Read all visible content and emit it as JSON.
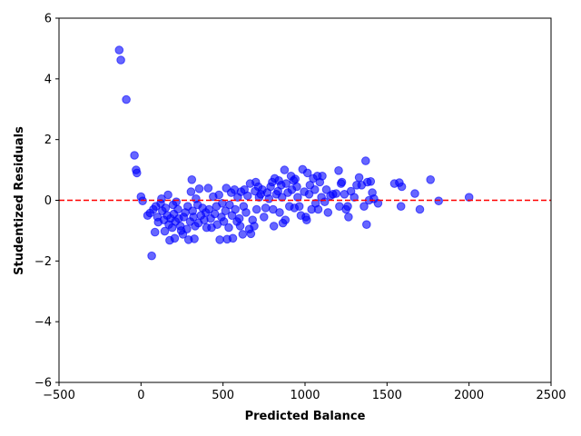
{
  "chart_data": {
    "type": "scatter",
    "xlabel": "Predicted Balance",
    "ylabel": "Studentized Residuals",
    "xlim": [
      -500,
      2500
    ],
    "ylim": [
      -6,
      6
    ],
    "xticks": [
      -500,
      0,
      500,
      1000,
      1500,
      2000,
      2500
    ],
    "yticks": [
      -6,
      -4,
      -2,
      0,
      2,
      4,
      6
    ],
    "grid": false,
    "point_color": "#0000ff",
    "reference_line": {
      "y": 0,
      "color": "#ff0000",
      "style": "dashed"
    },
    "points": [
      [
        -133,
        4.95
      ],
      [
        -123,
        4.62
      ],
      [
        -90,
        3.32
      ],
      [
        -40,
        1.48
      ],
      [
        -30,
        1.0
      ],
      [
        -25,
        0.9
      ],
      [
        0,
        0.12
      ],
      [
        10,
        -0.02
      ],
      [
        40,
        -0.5
      ],
      [
        55,
        -0.42
      ],
      [
        65,
        -1.83
      ],
      [
        75,
        -0.3
      ],
      [
        85,
        -1.05
      ],
      [
        90,
        -0.2
      ],
      [
        100,
        -0.55
      ],
      [
        105,
        -0.72
      ],
      [
        120,
        -0.1
      ],
      [
        125,
        0.05
      ],
      [
        130,
        -0.35
      ],
      [
        140,
        -0.65
      ],
      [
        145,
        -1.02
      ],
      [
        150,
        -0.25
      ],
      [
        160,
        -0.5
      ],
      [
        165,
        0.18
      ],
      [
        170,
        -0.8
      ],
      [
        175,
        -1.32
      ],
      [
        180,
        -0.6
      ],
      [
        190,
        -0.9
      ],
      [
        195,
        -0.15
      ],
      [
        200,
        -0.45
      ],
      [
        205,
        -1.25
      ],
      [
        210,
        -0.7
      ],
      [
        215,
        -0.05
      ],
      [
        225,
        -0.3
      ],
      [
        230,
        -0.6
      ],
      [
        240,
        -0.85
      ],
      [
        245,
        -1.0
      ],
      [
        255,
        -1.12
      ],
      [
        260,
        -0.55
      ],
      [
        270,
        -0.4
      ],
      [
        280,
        -0.95
      ],
      [
        285,
        -0.2
      ],
      [
        290,
        -1.3
      ],
      [
        300,
        -0.7
      ],
      [
        305,
        0.28
      ],
      [
        310,
        0.68
      ],
      [
        315,
        -0.35
      ],
      [
        320,
        -0.55
      ],
      [
        325,
        -1.27
      ],
      [
        330,
        -0.85
      ],
      [
        335,
        0.05
      ],
      [
        345,
        -0.15
      ],
      [
        350,
        -0.75
      ],
      [
        355,
        0.38
      ],
      [
        365,
        -0.5
      ],
      [
        375,
        -0.25
      ],
      [
        385,
        -0.65
      ],
      [
        395,
        -0.4
      ],
      [
        400,
        -0.9
      ],
      [
        410,
        0.4
      ],
      [
        415,
        -0.3
      ],
      [
        425,
        -0.6
      ],
      [
        430,
        -0.9
      ],
      [
        440,
        0.12
      ],
      [
        450,
        -0.45
      ],
      [
        460,
        -0.2
      ],
      [
        465,
        -0.8
      ],
      [
        475,
        0.18
      ],
      [
        480,
        -1.3
      ],
      [
        490,
        -0.55
      ],
      [
        495,
        -0.1
      ],
      [
        505,
        -0.7
      ],
      [
        515,
        -0.35
      ],
      [
        520,
        0.4
      ],
      [
        525,
        -1.28
      ],
      [
        535,
        -0.9
      ],
      [
        540,
        -0.15
      ],
      [
        550,
        0.25
      ],
      [
        555,
        -0.5
      ],
      [
        560,
        -1.25
      ],
      [
        570,
        0.35
      ],
      [
        575,
        -0.3
      ],
      [
        585,
        -0.7
      ],
      [
        590,
        0.1
      ],
      [
        600,
        -0.6
      ],
      [
        605,
        -0.85
      ],
      [
        610,
        0.28
      ],
      [
        620,
        -1.12
      ],
      [
        625,
        -0.2
      ],
      [
        630,
        0.35
      ],
      [
        640,
        -0.4
      ],
      [
        650,
        0.15
      ],
      [
        660,
        -0.95
      ],
      [
        665,
        0.55
      ],
      [
        670,
        -1.1
      ],
      [
        680,
        -0.65
      ],
      [
        690,
        -0.85
      ],
      [
        695,
        0.3
      ],
      [
        700,
        0.6
      ],
      [
        705,
        -0.3
      ],
      [
        715,
        0.45
      ],
      [
        720,
        0.1
      ],
      [
        730,
        0.2
      ],
      [
        740,
        0.35
      ],
      [
        750,
        -0.55
      ],
      [
        760,
        -0.25
      ],
      [
        770,
        0.25
      ],
      [
        780,
        0.05
      ],
      [
        790,
        0.45
      ],
      [
        800,
        0.6
      ],
      [
        805,
        -0.3
      ],
      [
        810,
        -0.85
      ],
      [
        815,
        0.72
      ],
      [
        825,
        0.2
      ],
      [
        835,
        0.3
      ],
      [
        840,
        0.65
      ],
      [
        845,
        -0.4
      ],
      [
        855,
        0.5
      ],
      [
        860,
        0.1
      ],
      [
        865,
        -0.75
      ],
      [
        875,
        1.0
      ],
      [
        880,
        -0.65
      ],
      [
        885,
        0.55
      ],
      [
        895,
        0.25
      ],
      [
        905,
        -0.2
      ],
      [
        915,
        0.8
      ],
      [
        920,
        0.35
      ],
      [
        930,
        0.65
      ],
      [
        935,
        -0.25
      ],
      [
        940,
        0.7
      ],
      [
        950,
        0.45
      ],
      [
        955,
        0.1
      ],
      [
        965,
        -0.2
      ],
      [
        975,
        -0.5
      ],
      [
        985,
        1.02
      ],
      [
        995,
        0.28
      ],
      [
        1005,
        -0.55
      ],
      [
        1010,
        -0.65
      ],
      [
        1015,
        0.9
      ],
      [
        1025,
        0.2
      ],
      [
        1030,
        0.5
      ],
      [
        1040,
        -0.3
      ],
      [
        1050,
        0.72
      ],
      [
        1060,
        0.35
      ],
      [
        1065,
        -0.1
      ],
      [
        1075,
        0.8
      ],
      [
        1080,
        -0.3
      ],
      [
        1090,
        0.6
      ],
      [
        1100,
        0.1
      ],
      [
        1105,
        0.8
      ],
      [
        1120,
        -0.05
      ],
      [
        1130,
        0.35
      ],
      [
        1140,
        -0.4
      ],
      [
        1155,
        0.15
      ],
      [
        1170,
        0.2
      ],
      [
        1190,
        0.22
      ],
      [
        1205,
        0.98
      ],
      [
        1210,
        -0.2
      ],
      [
        1220,
        0.55
      ],
      [
        1225,
        0.6
      ],
      [
        1240,
        0.2
      ],
      [
        1250,
        -0.3
      ],
      [
        1260,
        -0.2
      ],
      [
        1265,
        -0.55
      ],
      [
        1280,
        0.3
      ],
      [
        1300,
        0.1
      ],
      [
        1315,
        0.5
      ],
      [
        1330,
        0.75
      ],
      [
        1345,
        0.5
      ],
      [
        1360,
        -0.2
      ],
      [
        1370,
        1.3
      ],
      [
        1375,
        -0.8
      ],
      [
        1380,
        0.6
      ],
      [
        1390,
        0.0
      ],
      [
        1400,
        0.62
      ],
      [
        1410,
        0.25
      ],
      [
        1420,
        0.05
      ],
      [
        1445,
        -0.1
      ],
      [
        1545,
        0.55
      ],
      [
        1575,
        0.58
      ],
      [
        1585,
        -0.2
      ],
      [
        1590,
        0.45
      ],
      [
        1670,
        0.22
      ],
      [
        1700,
        -0.3
      ],
      [
        1765,
        0.68
      ],
      [
        1815,
        -0.02
      ],
      [
        2000,
        0.1
      ]
    ]
  }
}
